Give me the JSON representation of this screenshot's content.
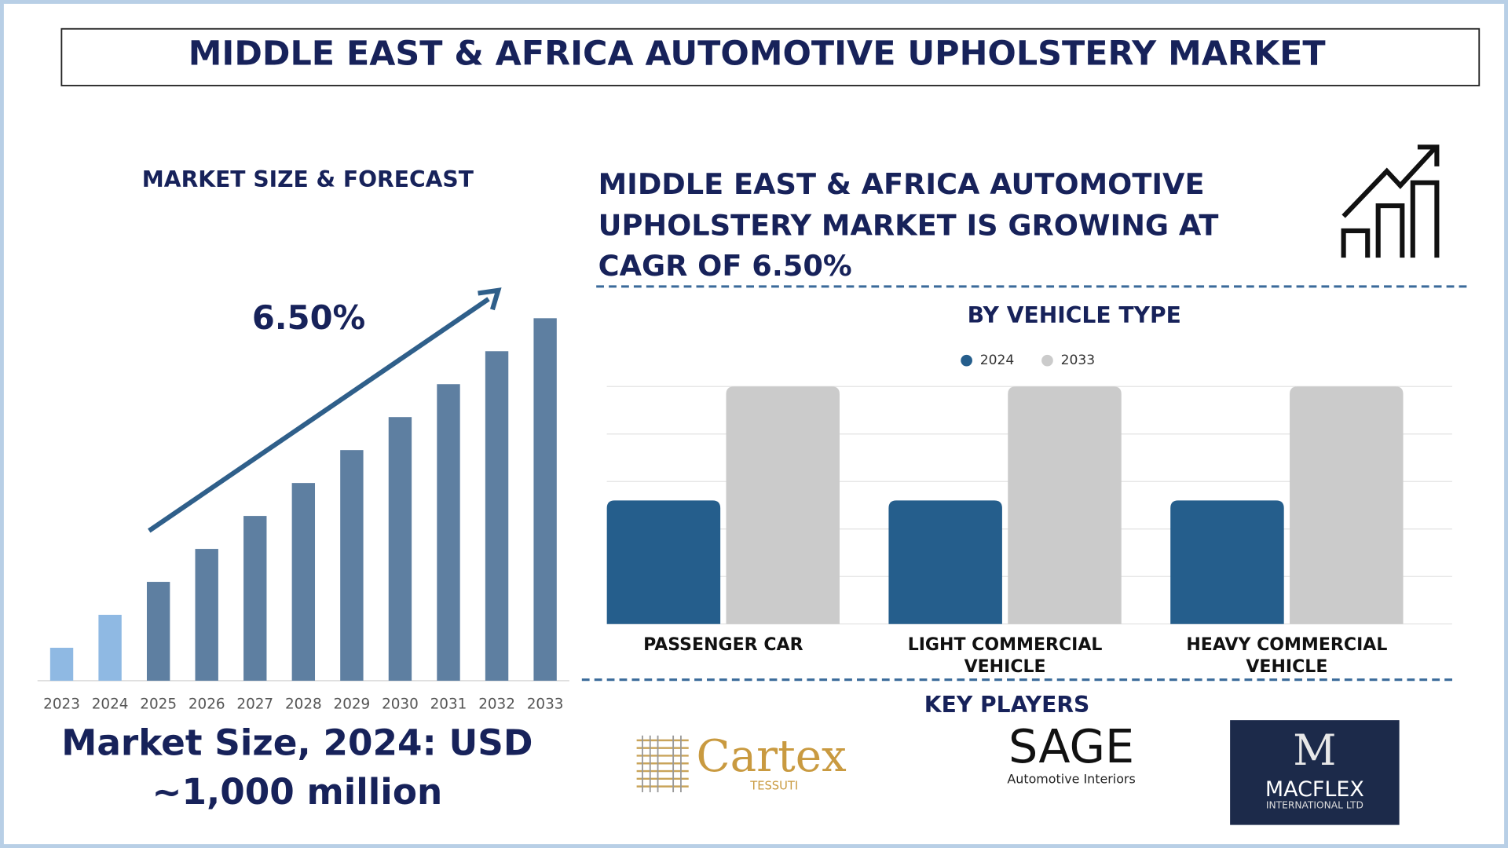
{
  "title": "MIDDLE EAST & AFRICA AUTOMOTIVE UPHOLSTERY MARKET",
  "headline": [
    "MIDDLE EAST & AFRICA AUTOMOTIVE",
    "UPHOLSTERY MARKET IS GROWING AT",
    "CAGR OF 6.50%"
  ],
  "market_size": [
    "Market Size, 2024: USD",
    "~1,000 million"
  ],
  "key_players_title": "KEY PLAYERS",
  "key_players": [
    {
      "name": "Cartex",
      "subtitle": "TESSUTI"
    },
    {
      "name": "SAGE",
      "subtitle": "Automotive Interiors"
    },
    {
      "name": "M",
      "subtitle": "MACFLEX",
      "detail": "INTERNATIONAL LTD"
    }
  ],
  "chart_data": [
    {
      "type": "bar",
      "title": "MARKET SIZE & FORECAST",
      "annotation": "6.50%",
      "categories": [
        "2023",
        "2024",
        "2025",
        "2026",
        "2027",
        "2028",
        "2029",
        "2030",
        "2031",
        "2032",
        "2033"
      ],
      "values": [
        1,
        2,
        3,
        4,
        5,
        6,
        7,
        8,
        9,
        10,
        11
      ],
      "colors": [
        "#8fb9e3",
        "#8fb9e3",
        "#5e7fa1",
        "#5e7fa1",
        "#5e7fa1",
        "#5e7fa1",
        "#5e7fa1",
        "#5e7fa1",
        "#5e7fa1",
        "#5e7fa1",
        "#5e7fa1"
      ],
      "ylim": [
        0,
        11
      ]
    },
    {
      "type": "grouped-bar",
      "title": "BY VEHICLE TYPE",
      "categories": [
        "PASSENGER CAR",
        "LIGHT COMMERCIAL VEHICLE",
        "HEAVY COMMERCIAL VEHICLE"
      ],
      "series": [
        {
          "name": "2024",
          "color": "#255e8c",
          "values": [
            2.6,
            2.6,
            2.6
          ]
        },
        {
          "name": "2033",
          "color": "#cbcbcb",
          "values": [
            5,
            5,
            5
          ]
        }
      ],
      "ylim": [
        0,
        5
      ],
      "yticks": [
        0,
        1,
        2,
        3,
        4,
        5
      ],
      "grid": true,
      "show_ytick_labels": false,
      "legend": "top"
    }
  ]
}
